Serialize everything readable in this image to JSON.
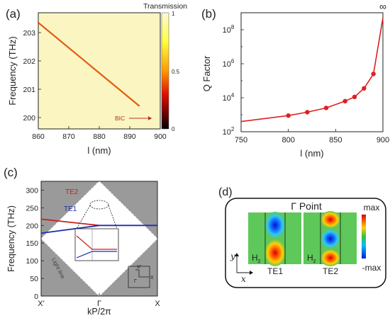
{
  "panel_a": {
    "label": "(a)",
    "colorbar_title": "Transmission",
    "colorbar_ticks": [
      "1",
      "0.5",
      "0"
    ],
    "bic_label": "BIC",
    "chart_data": {
      "type": "heatmap",
      "xlabel": "l (nm)",
      "ylabel": "Frequency (THz)",
      "xlim": [
        860,
        900
      ],
      "ylim": [
        199.6,
        203.7
      ],
      "x_ticks": [
        "860",
        "870",
        "880",
        "890",
        "900"
      ],
      "y_ticks": [
        "203",
        "202",
        "201",
        "200"
      ],
      "colormap": [
        "#fff8d6",
        "#ffff40",
        "#ff9a00",
        "#e01000",
        "#7a0000",
        "#000000"
      ],
      "background_color": "#fbf5c2",
      "resonance_line": {
        "x": [
          860,
          893
        ],
        "y": [
          203.35,
          200.42
        ]
      },
      "bic_at": 900
    }
  },
  "panel_b": {
    "label": "(b)",
    "chart_data": {
      "type": "line",
      "xlabel": "l (nm)",
      "ylabel": "Q Factor",
      "xlim": [
        750,
        900
      ],
      "ylim_log10": [
        2,
        9
      ],
      "log_scale_y": true,
      "x_ticks": [
        "750",
        "800",
        "850",
        "900"
      ],
      "y_ticks": [
        "10",
        "10",
        "10",
        "10"
      ],
      "y_tick_exponents": [
        "2",
        "4",
        "6",
        "8"
      ],
      "top_label": "∞",
      "x": [
        750,
        800,
        820,
        840,
        860,
        870,
        880,
        890,
        900
      ],
      "y_log10": [
        2.6,
        2.95,
        3.15,
        3.4,
        3.8,
        4.05,
        4.55,
        5.4,
        8.7
      ],
      "marker_x": [
        800,
        820,
        840,
        860,
        870,
        880,
        890
      ],
      "color": "#e02020"
    }
  },
  "panel_c": {
    "label": "(c)",
    "te1_label": "TE1",
    "te2_label": "TE2",
    "light_line_label": "Light line",
    "gamma_label": "Γ",
    "x_point_label": "X",
    "x_prime_label": "X'",
    "chart_data": {
      "type": "line",
      "xlabel": "kP/2π",
      "ylabel": "Frequency (THz)",
      "ylim": [
        0,
        325
      ],
      "x_ticks": [
        "X'",
        "Γ",
        "X"
      ],
      "y_ticks": [
        "0",
        "50",
        "100",
        "150",
        "200",
        "250",
        "300"
      ],
      "series": [
        {
          "name": "TE2",
          "color": "#c81e1e",
          "k": [
            -1,
            0
          ],
          "freq": [
            218,
            200
          ]
        },
        {
          "name": "TE1",
          "color": "#1c2fb0",
          "k": [
            -1,
            0,
            1
          ],
          "freq": [
            178,
            200,
            200
          ]
        }
      ],
      "light_cone_color": "#9a9a9a"
    }
  },
  "panel_d": {
    "label": "(d)",
    "title": "Γ Point",
    "max_label": "max",
    "min_label": "-max",
    "field_label": "H",
    "field_sub": "z",
    "mode1_label": "TE1",
    "mode2_label": "TE2",
    "axis_y": "y",
    "axis_x": "x",
    "colorbar_colors": [
      "#e00000",
      "#ffd000",
      "#3ac040",
      "#00c0ff",
      "#0020d0"
    ],
    "field_background": "#5ec85a"
  }
}
